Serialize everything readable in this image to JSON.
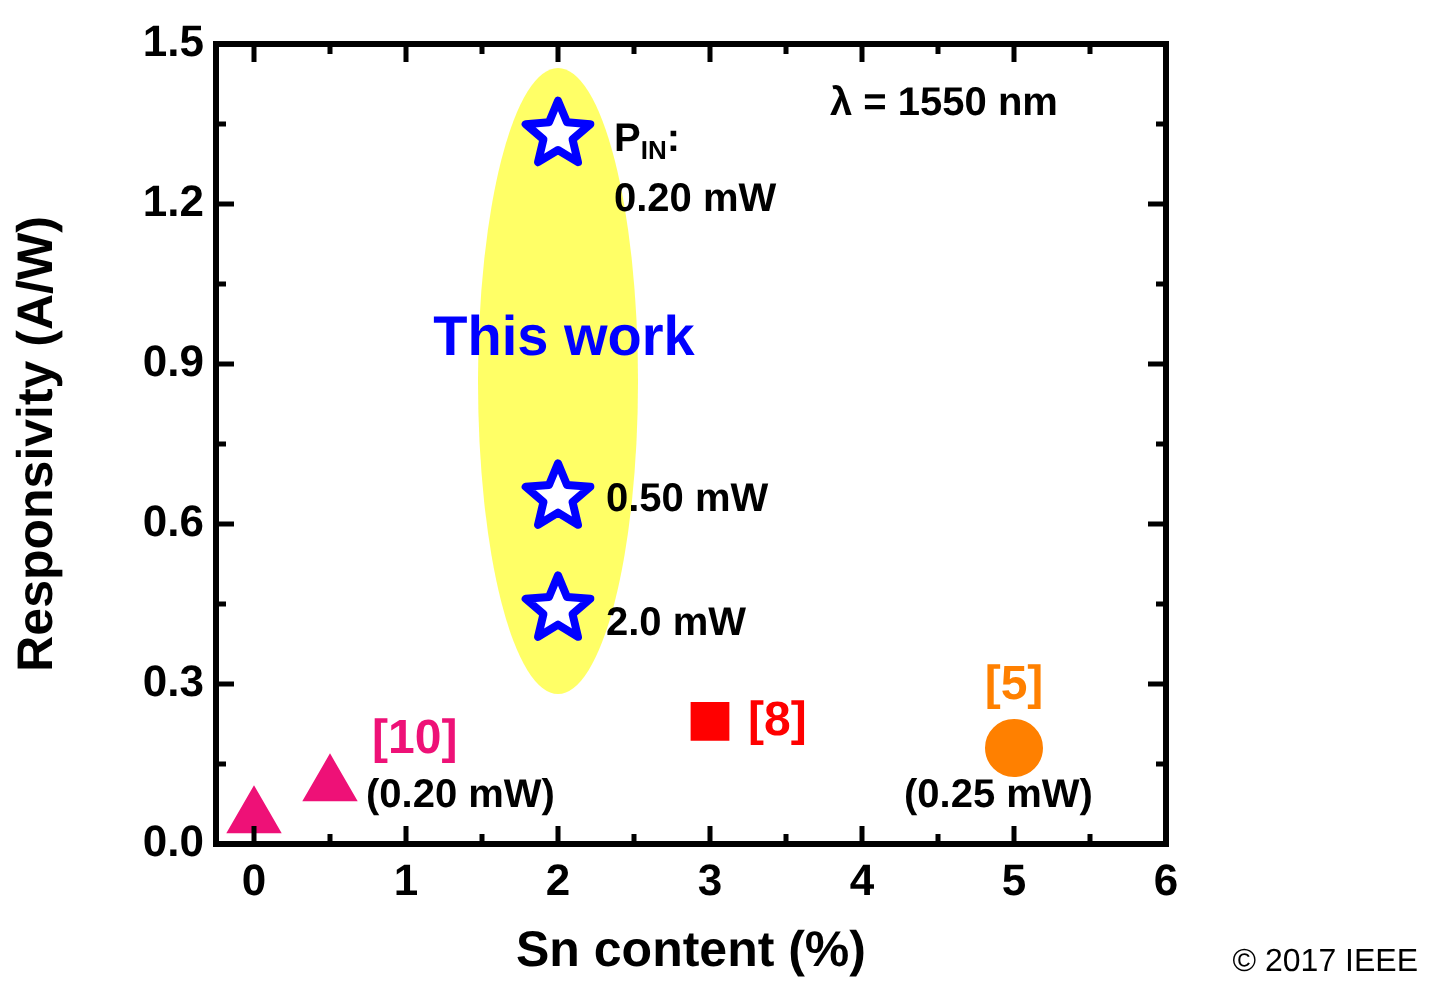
{
  "chart_data": {
    "type": "scatter",
    "xlabel": "Sn content (%)",
    "ylabel": "Responsivity (A/W)",
    "xlim": [
      -0.25,
      6
    ],
    "xticks": [
      0,
      1,
      2,
      3,
      4,
      5,
      6
    ],
    "ylim": [
      0,
      1.5
    ],
    "yticks": [
      {
        "value": 0,
        "label": "0.0"
      },
      0.3,
      0.6,
      0.9,
      1.2,
      1.5
    ],
    "grid": false,
    "legend": false,
    "series": [
      {
        "name": "This work",
        "color": "#0000ff",
        "marker": "star",
        "x": [
          2,
          2,
          2
        ],
        "values": [
          1.33,
          0.65,
          0.44
        ]
      },
      {
        "name": "[10]",
        "color": "#ee1177",
        "marker": "triangle",
        "x": [
          0,
          0.5
        ],
        "values": [
          0.05,
          0.11
        ]
      },
      {
        "name": "[8]",
        "color": "#ff0000",
        "marker": "square",
        "x": [
          3
        ],
        "values": [
          0.23
        ]
      },
      {
        "name": "[5]",
        "color": "#ff8000",
        "marker": "circle",
        "x": [
          5
        ],
        "values": [
          0.18
        ]
      }
    ],
    "annotations": [
      "λ = 1550 nm",
      "P$_{IN}$:",
      "0.20 mW",
      "0.50 mW",
      "2.0 mW",
      "(0.20 mW)",
      "(0.25 mW)",
      "© 2017 IEEE"
    ]
  }
}
